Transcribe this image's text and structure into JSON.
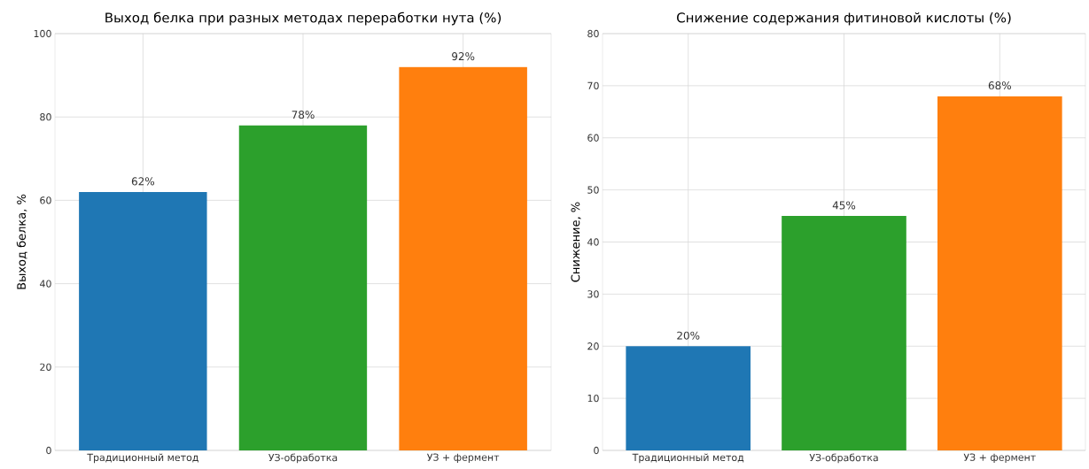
{
  "chart_data": [
    {
      "type": "bar",
      "title": "Выход белка при разных методах переработки нута (%)",
      "ylabel": "Выход белка, %",
      "categories": [
        "Традиционный метод",
        "УЗ-обработка",
        "УЗ + фермент"
      ],
      "values": [
        62,
        78,
        92
      ],
      "colors": [
        "#1f77b4",
        "#2ca02c",
        "#ff7f0e"
      ],
      "value_labels": [
        "62%",
        "78%",
        "92%"
      ],
      "ylim": [
        0,
        100
      ],
      "yticks": [
        0,
        20,
        40,
        60,
        80,
        100
      ],
      "grid": true
    },
    {
      "type": "bar",
      "title": "Снижение содержания фитиновой кислоты (%)",
      "ylabel": "Снижение, %",
      "categories": [
        "Традиционный метод",
        "УЗ-обработка",
        "УЗ + фермент"
      ],
      "values": [
        20,
        45,
        68
      ],
      "colors": [
        "#1f77b4",
        "#2ca02c",
        "#ff7f0e"
      ],
      "value_labels": [
        "20%",
        "45%",
        "68%"
      ],
      "ylim": [
        0,
        80
      ],
      "yticks": [
        0,
        10,
        20,
        30,
        40,
        50,
        60,
        70,
        80
      ],
      "grid": true
    }
  ]
}
